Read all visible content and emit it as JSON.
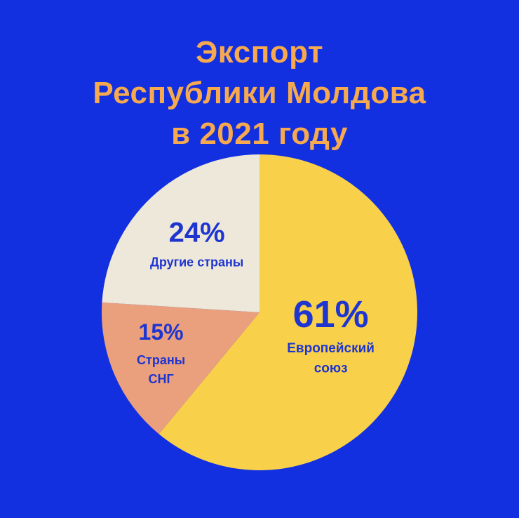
{
  "chart_data": {
    "type": "pie",
    "title_lines": [
      "Экспорт",
      "Республики Молдова",
      "в 2021 году"
    ],
    "slices": [
      {
        "name_lines": [
          "Европейский",
          "союз"
        ],
        "value": 61,
        "label": "61%",
        "color": "#F8D04A"
      },
      {
        "name_lines": [
          "Страны",
          "СНГ"
        ],
        "value": 15,
        "label": "15%",
        "color": "#EBA07D"
      },
      {
        "name_lines": [
          "Другие страны"
        ],
        "value": 24,
        "label": "24%",
        "color": "#EEE8DA"
      }
    ]
  },
  "colors": {
    "background": "#1230E0",
    "title": "#F6A94E",
    "label": "#1E35D0"
  }
}
